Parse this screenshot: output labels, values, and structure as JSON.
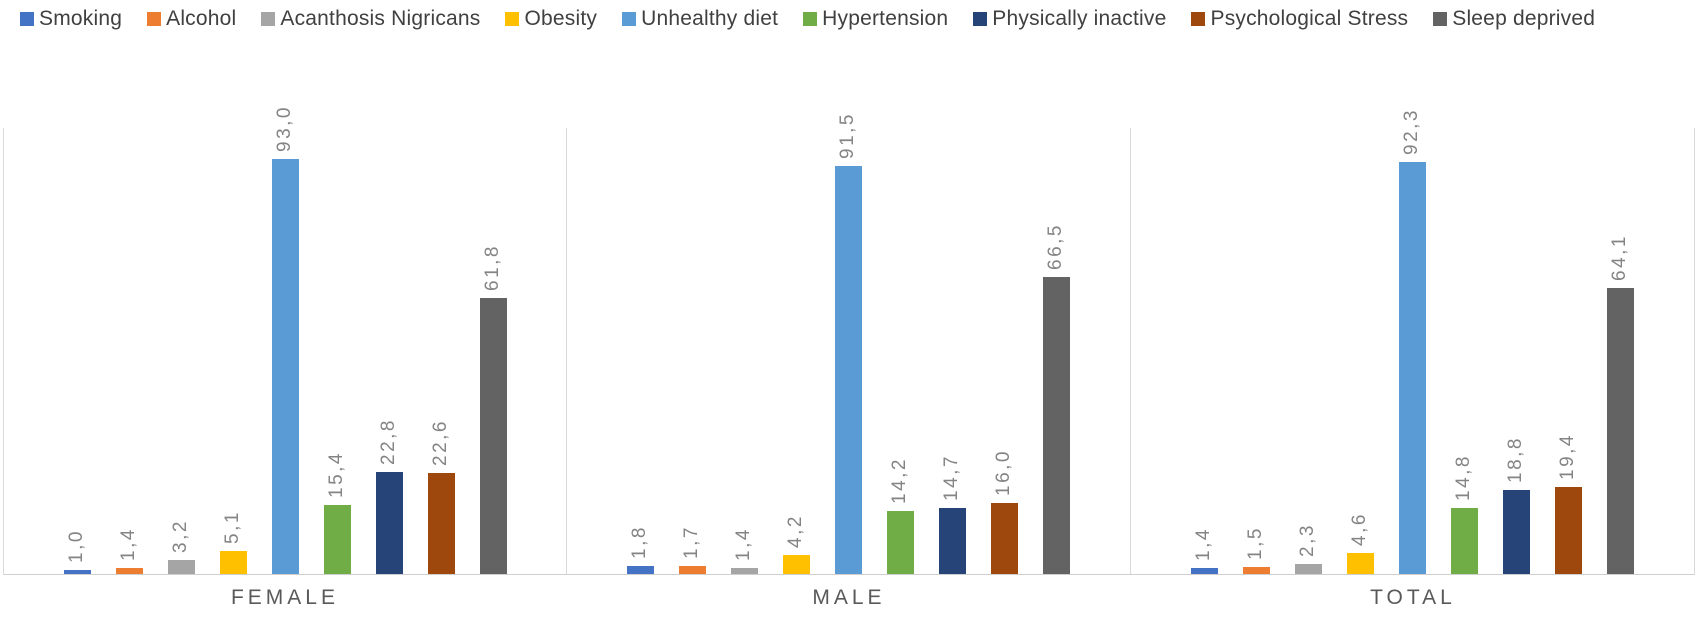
{
  "chart_data": {
    "type": "bar",
    "title": "",
    "xlabel": "",
    "ylabel": "",
    "ylim": [
      0,
      100
    ],
    "y_axis_visible": false,
    "grid": "vertical category separators only",
    "legend_position": "top",
    "decimal_separator": "comma",
    "value_labels_rotation": "vertical",
    "categories": [
      "FEMALE",
      "MALE",
      "TOTAL"
    ],
    "series": [
      {
        "name": "Smoking",
        "color": "#4472C4",
        "values": [
          1.0,
          1.8,
          1.4
        ],
        "display": [
          "1,0",
          "1,8",
          "1,4"
        ]
      },
      {
        "name": "Alcohol",
        "color": "#ED7D31",
        "values": [
          1.4,
          1.7,
          1.5
        ],
        "display": [
          "1,4",
          "1,7",
          "1,5"
        ]
      },
      {
        "name": "Acanthosis Nigricans",
        "color": "#A5A5A5",
        "values": [
          3.2,
          1.4,
          2.3
        ],
        "display": [
          "3,2",
          "1,4",
          "2,3"
        ]
      },
      {
        "name": "Obesity",
        "color": "#FFC000",
        "values": [
          5.1,
          4.2,
          4.6
        ],
        "display": [
          "5,1",
          "4,2",
          "4,6"
        ]
      },
      {
        "name": "Unhealthy diet",
        "color": "#5B9BD5",
        "values": [
          93.0,
          91.5,
          92.3
        ],
        "display": [
          "93,0",
          "91,5",
          "92,3"
        ]
      },
      {
        "name": "Hypertension",
        "color": "#70AD47",
        "values": [
          15.4,
          14.2,
          14.8
        ],
        "display": [
          "15,4",
          "14,2",
          "14,8"
        ]
      },
      {
        "name": "Physically inactive",
        "color": "#264478",
        "values": [
          22.8,
          14.7,
          18.8
        ],
        "display": [
          "22,8",
          "14,7",
          "18,8"
        ]
      },
      {
        "name": "Psychological Stress",
        "color": "#9E480E",
        "values": [
          22.6,
          16.0,
          19.4
        ],
        "display": [
          "22,6",
          "16,0",
          "19,4"
        ]
      },
      {
        "name": "Sleep deprived",
        "color": "#636363",
        "values": [
          61.8,
          66.5,
          64.1
        ],
        "display": [
          "61,8",
          "66,5",
          "64,1"
        ]
      }
    ]
  },
  "colors": {
    "axis_line": "#D9D9D9",
    "legend_text": "#404040",
    "value_label_text": "#848484",
    "category_label_text": "#595959",
    "background": "#FFFFFF"
  }
}
